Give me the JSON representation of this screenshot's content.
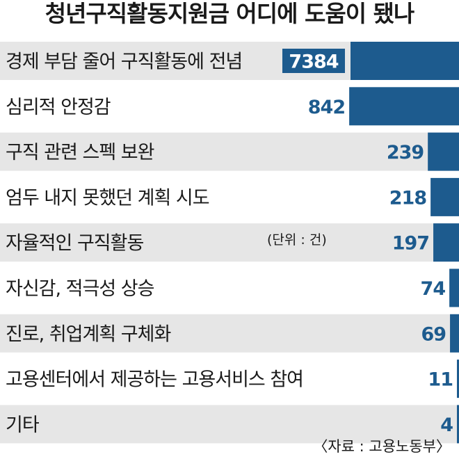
{
  "chart_data": {
    "type": "bar",
    "orientation": "horizontal",
    "title": "청년구직활동지원금 어디에 도움이 됐나",
    "unit": "(단위 : 건)",
    "source": "〈자료 : 고용노동부〉",
    "categories": [
      "경제 부담 줄어 구직활동에 전념",
      "심리적 안정감",
      "구직 관련 스펙 보완",
      "엄두 내지 못했던 계획 시도",
      "자율적인 구직활동",
      "자신감, 적극성 상승",
      "진로, 취업계획 구체화",
      "고용센터에서 제공하는 고용서비스 참여",
      "기타"
    ],
    "values": [
      7384,
      842,
      239,
      218,
      197,
      74,
      69,
      11,
      4
    ],
    "value_labels": [
      "7384",
      "842",
      "239",
      "218",
      "197",
      "74",
      "69",
      "11",
      "4"
    ],
    "bar_color": "#1d5b8e",
    "row_background": "#e6e6e6",
    "axis_break": true
  }
}
